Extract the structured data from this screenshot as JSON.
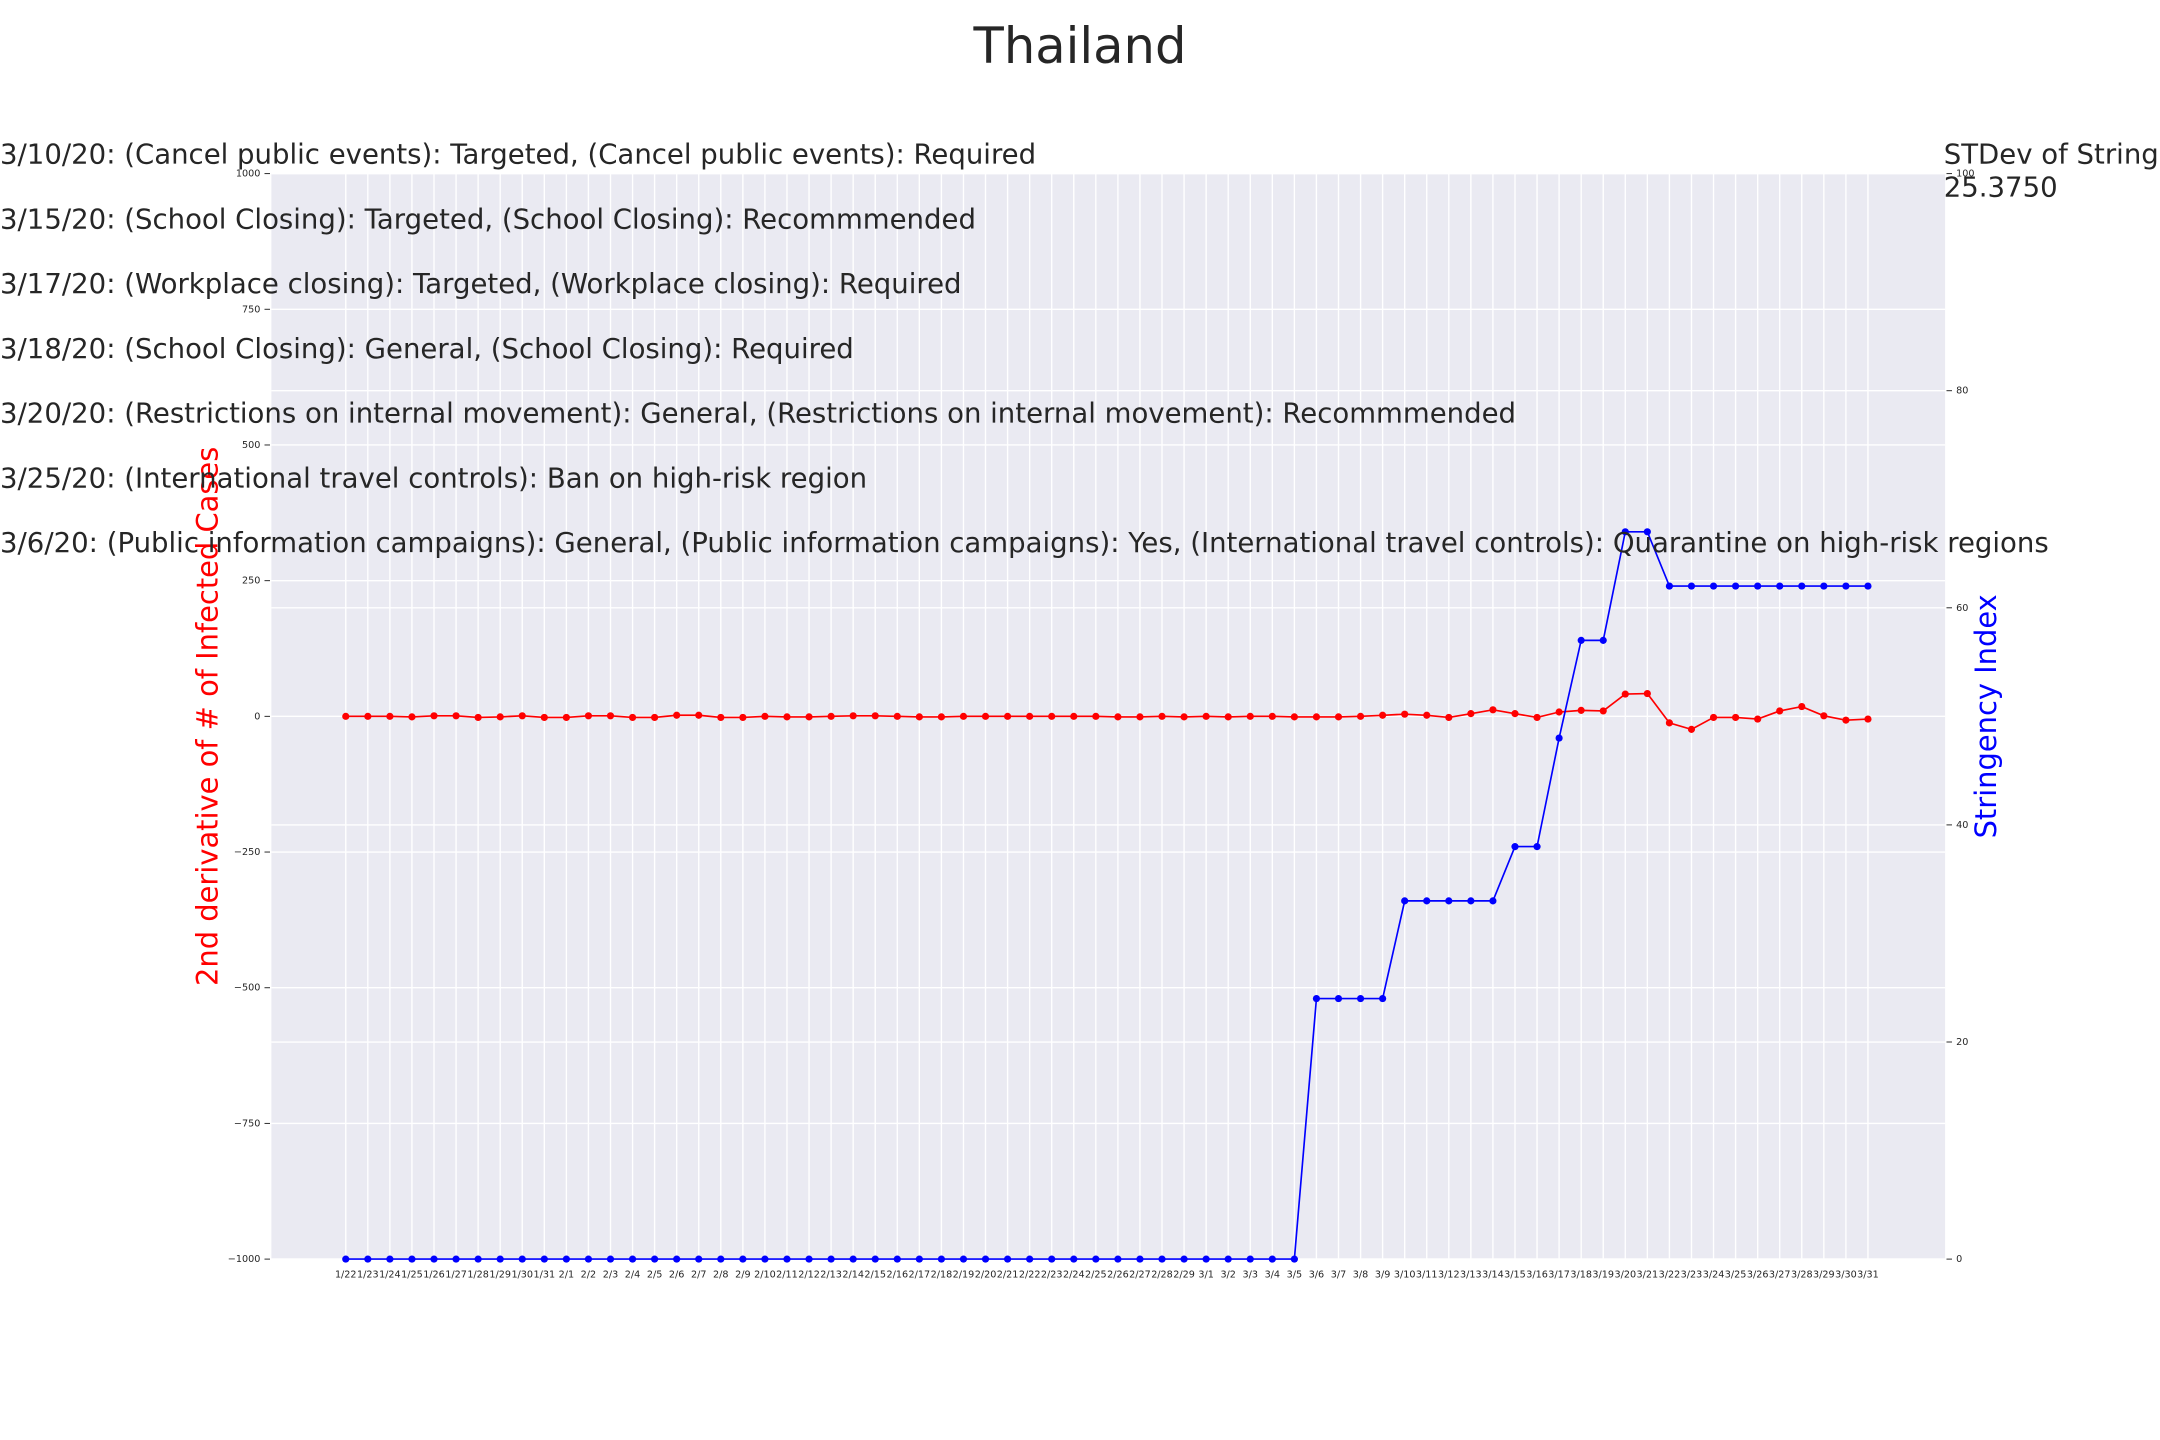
{
  "chart_data": {
    "type": "line",
    "title": "Thailand",
    "annotations": [
      "3/10/20: (Cancel public events): Targeted, (Cancel public events): Required",
      "3/15/20: (School Closing): Targeted, (School Closing): Recommmended",
      "3/17/20: (Workplace closing): Targeted, (Workplace closing): Required",
      "3/18/20: (School Closing): General, (School Closing): Required",
      "3/20/20: (Restrictions on internal movement): General, (Restrictions on internal movement): Recommmended",
      "3/25/20: (International travel controls): Ban on high-risk region",
      "3/6/20: (Public information campaigns): General, (Public information campaigns): Yes, (International travel controls): Quarantine on high-risk regions"
    ],
    "stdev_label": "STDev of Stringency",
    "stdev_value": "25.3750",
    "ylabel": "2nd derivative of # of Infected Cases",
    "y2label": "Stringency Index",
    "categories": [
      "1/22",
      "1/23",
      "1/24",
      "1/25",
      "1/26",
      "1/27",
      "1/28",
      "1/29",
      "1/30",
      "1/31",
      "2/1",
      "2/2",
      "2/3",
      "2/4",
      "2/5",
      "2/6",
      "2/7",
      "2/8",
      "2/9",
      "2/10",
      "2/11",
      "2/12",
      "2/13",
      "2/14",
      "2/15",
      "2/16",
      "2/17",
      "2/18",
      "2/19",
      "2/20",
      "2/21",
      "2/22",
      "2/23",
      "2/24",
      "2/25",
      "2/26",
      "2/27",
      "2/28",
      "2/29",
      "3/1",
      "3/2",
      "3/3",
      "3/4",
      "3/5",
      "3/6",
      "3/7",
      "3/8",
      "3/9",
      "3/10",
      "3/11",
      "3/12",
      "3/13",
      "3/14",
      "3/15",
      "3/16",
      "3/17",
      "3/18",
      "3/19",
      "3/20",
      "3/21",
      "3/22",
      "3/23",
      "3/24",
      "3/25",
      "3/26",
      "3/27",
      "3/28",
      "3/29",
      "3/30",
      "3/31"
    ],
    "series": [
      {
        "color": "#ff0000",
        "values": [
          0,
          0,
          0,
          -1,
          1,
          1,
          -2,
          -1,
          1,
          -2,
          -2,
          1,
          1,
          -2,
          -2,
          2,
          2,
          -2,
          -2,
          0,
          -1,
          -1,
          0,
          1,
          1,
          0,
          -1,
          -1,
          0,
          0,
          0,
          0,
          0,
          0,
          0,
          -1,
          -1,
          0,
          -1,
          0,
          -1,
          0,
          0,
          -1,
          -1,
          -1,
          0,
          2,
          4,
          2,
          -2,
          5,
          12,
          5,
          -2,
          8,
          11,
          10,
          41,
          42,
          -12,
          -24,
          -2,
          -2,
          -5,
          10,
          18,
          1,
          -7,
          -5
        ]
      },
      {
        "color": "#0000ff",
        "axis": "y2",
        "values": [
          0,
          0,
          0,
          0,
          0,
          0,
          0,
          0,
          0,
          0,
          0,
          0,
          0,
          0,
          0,
          0,
          0,
          0,
          0,
          0,
          0,
          0,
          0,
          0,
          0,
          0,
          0,
          0,
          0,
          0,
          0,
          0,
          0,
          0,
          0,
          0,
          0,
          0,
          0,
          0,
          0,
          0,
          0,
          0,
          24,
          24,
          24,
          24,
          33,
          33,
          33,
          33,
          33,
          38,
          38,
          48,
          57,
          57,
          67,
          67,
          62,
          62,
          62,
          62,
          62,
          62,
          62,
          62,
          62,
          62
        ]
      }
    ],
    "ylim": [
      -1000,
      1000
    ],
    "yticks": [
      {
        "value": -1000,
        "label": "−1000"
      },
      {
        "value": -750,
        "label": "−750"
      },
      {
        "value": -500,
        "label": "−500"
      },
      {
        "value": -250,
        "label": "−250"
      },
      0,
      250,
      500,
      750,
      1000
    ],
    "y2lim": [
      0,
      100
    ],
    "y2ticks": [
      0,
      20,
      40,
      60,
      80,
      100
    ],
    "grid": true,
    "background": "#eaeaf2"
  }
}
